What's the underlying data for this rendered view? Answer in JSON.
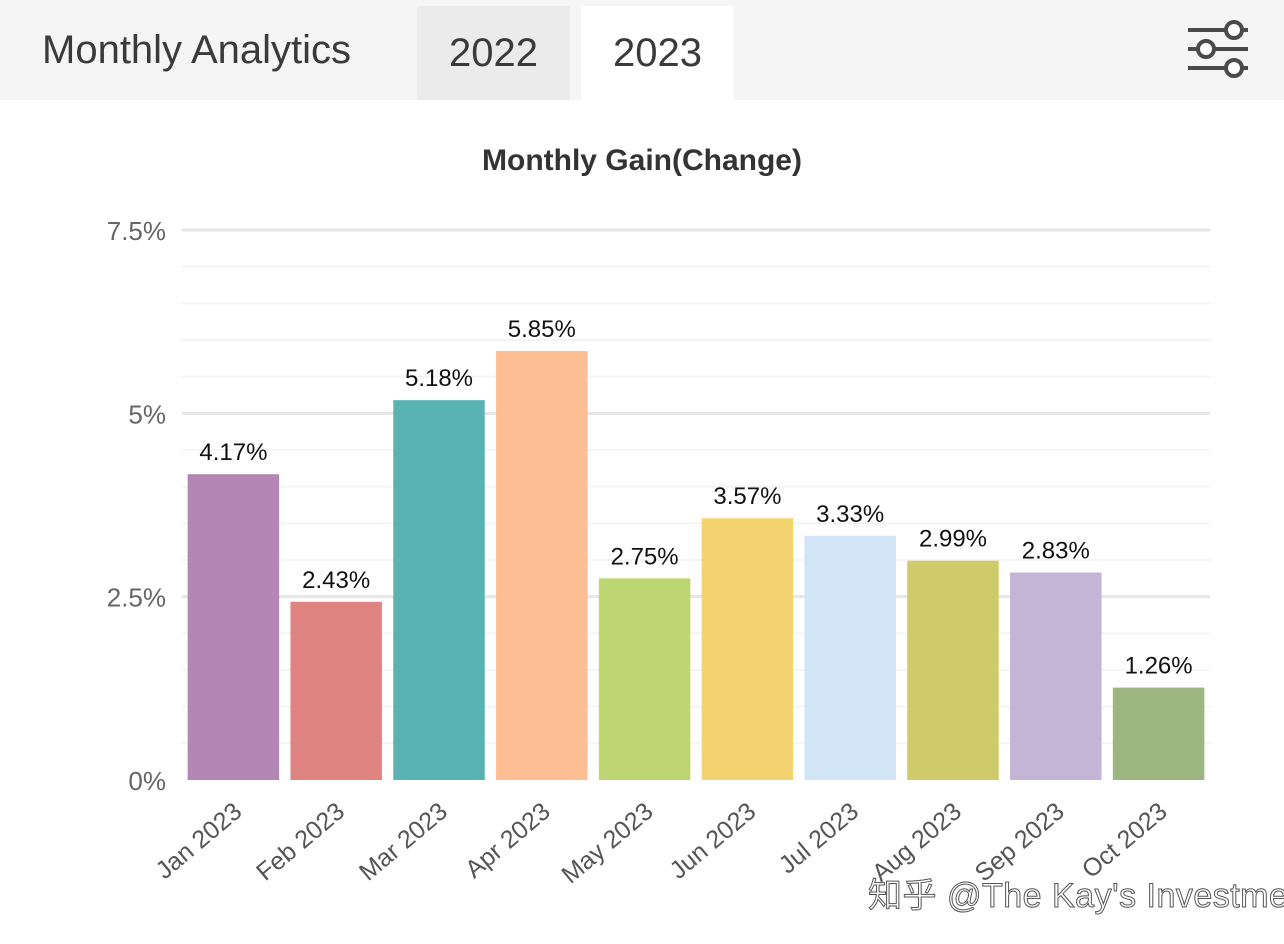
{
  "header": {
    "title": "Monthly Analytics",
    "tabs": [
      {
        "label": "2022",
        "active": false
      },
      {
        "label": "2023",
        "active": true
      }
    ],
    "filter_icon": "sliders-icon"
  },
  "chart_data": {
    "type": "bar",
    "title": "Monthly Gain(Change)",
    "xlabel": "",
    "ylabel": "",
    "ylim": [
      0,
      7.5
    ],
    "yticks": [
      0,
      2.5,
      5,
      7.5
    ],
    "ytick_labels": [
      "0%",
      "2.5%",
      "5%",
      "7.5%"
    ],
    "grid": true,
    "categories": [
      "Jan 2023",
      "Feb 2023",
      "Mar 2023",
      "Apr 2023",
      "May 2023",
      "Jun 2023",
      "Jul 2023",
      "Aug 2023",
      "Sep 2023",
      "Oct 2023"
    ],
    "values": [
      4.17,
      2.43,
      5.18,
      5.85,
      2.75,
      3.57,
      3.33,
      2.99,
      2.83,
      1.26
    ],
    "data_labels": [
      "4.17%",
      "2.43%",
      "5.18%",
      "5.85%",
      "2.75%",
      "3.57%",
      "3.33%",
      "2.99%",
      "2.83%",
      "1.26%"
    ],
    "colors": [
      "#b386b3",
      "#e08482",
      "#5ab3b3",
      "#fdbe93",
      "#bdd671",
      "#f4d470",
      "#d1e5f7",
      "#d0cb6a",
      "#c4b5d6",
      "#9cb581"
    ]
  },
  "watermark": "知乎 @The Kay's Investment"
}
